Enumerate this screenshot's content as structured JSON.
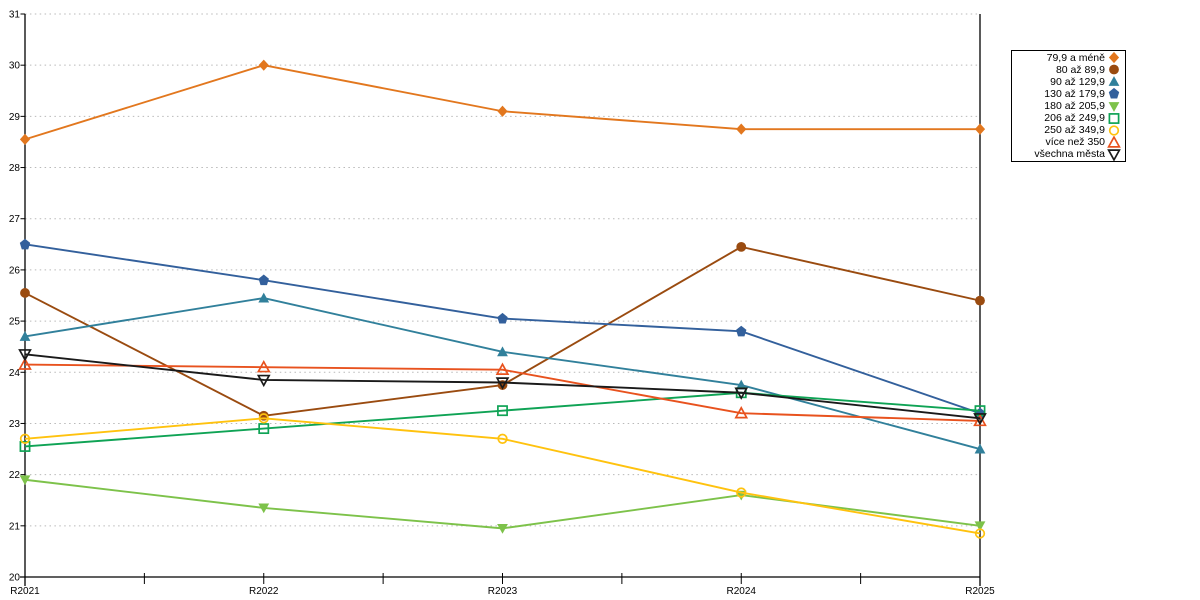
{
  "chart_data": {
    "type": "line",
    "title": "",
    "xlabel": "",
    "ylabel": "",
    "categories": [
      "R2021",
      "R2022",
      "R2023",
      "R2024",
      "R2025"
    ],
    "ylim": [
      20,
      31
    ],
    "ytick_step": 1,
    "grid": "horizontal dotted",
    "legend_position": "top-right",
    "background": "#ffffff",
    "grid_color": "#b9b9b9",
    "axis_color": "#000000",
    "series": [
      {
        "name": "79,9 a méně",
        "color": "#e2771e",
        "marker": "diamond",
        "fill": "filled",
        "values": [
          28.55,
          30.0,
          29.1,
          28.75,
          28.75
        ]
      },
      {
        "name": "80 až 89,9",
        "color": "#9a4b10",
        "marker": "circle",
        "fill": "filled",
        "values": [
          25.55,
          23.15,
          23.75,
          26.45,
          25.4
        ]
      },
      {
        "name": "90 až 129,9",
        "color": "#31809b",
        "marker": "triangle-up",
        "fill": "filled",
        "values": [
          24.7,
          25.45,
          24.4,
          23.75,
          22.5
        ]
      },
      {
        "name": "130 až 179,9",
        "color": "#33609c",
        "marker": "pentagon",
        "fill": "filled",
        "values": [
          26.5,
          25.8,
          25.05,
          24.8,
          23.2
        ]
      },
      {
        "name": "180 až 205,9",
        "color": "#7dc24a",
        "marker": "triangle-down",
        "fill": "filled",
        "values": [
          21.9,
          21.35,
          20.95,
          21.6,
          21.0
        ]
      },
      {
        "name": "206 až 249,9",
        "color": "#0fa355",
        "marker": "square",
        "fill": "open",
        "values": [
          22.55,
          22.9,
          23.25,
          23.6,
          23.25
        ]
      },
      {
        "name": "250 až 349,9",
        "color": "#ffc20e",
        "marker": "circle",
        "fill": "open",
        "values": [
          22.7,
          23.1,
          22.7,
          21.65,
          20.85
        ]
      },
      {
        "name": "více než 350",
        "color": "#e8521e",
        "marker": "triangle-up",
        "fill": "open",
        "values": [
          24.15,
          24.1,
          24.05,
          23.2,
          23.05
        ]
      },
      {
        "name": "všechna města",
        "color": "#1a1a1a",
        "marker": "triangle-down",
        "fill": "open",
        "values": [
          24.35,
          23.85,
          23.8,
          23.6,
          23.1
        ]
      }
    ]
  }
}
